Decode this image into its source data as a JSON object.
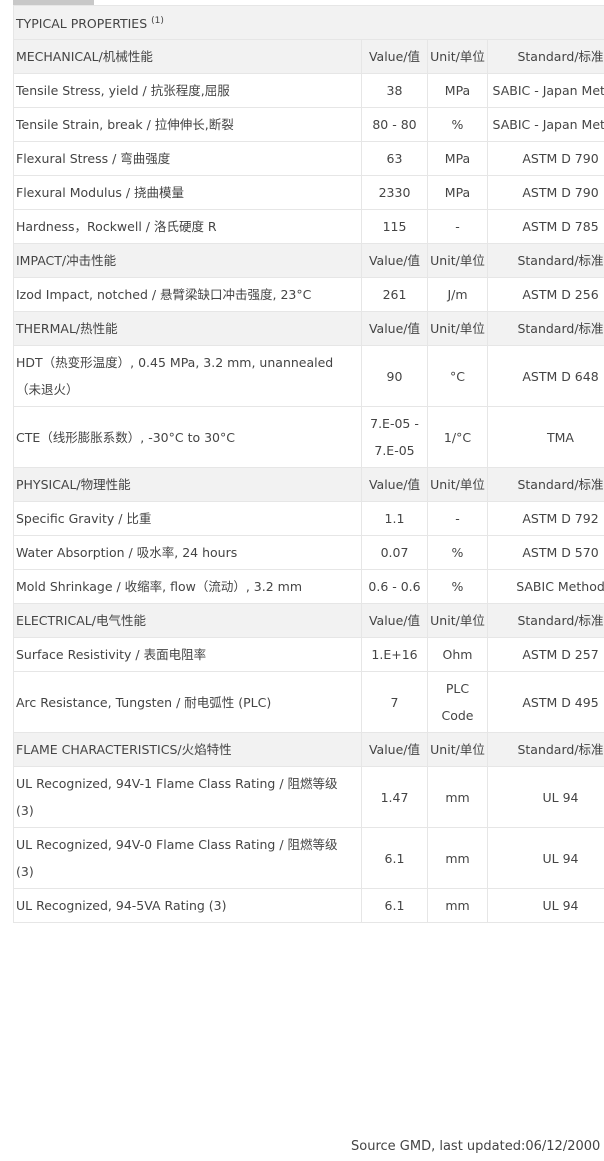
{
  "title": "TYPICAL PROPERTIES",
  "title_note": "(1)",
  "sections": [
    {
      "header": [
        "MECHANICAL/机械性能",
        "Value/值",
        "Unit/单位",
        "Standard/标准"
      ],
      "rows": [
        [
          "Tensile Stress, yield / 抗张程度,屈服",
          "38",
          "MPa",
          "SABIC - Japan Method"
        ],
        [
          "Tensile Strain, break / 拉伸伸长,断裂",
          "80 - 80",
          "%",
          "SABIC - Japan Method"
        ],
        [
          "Flexural Stress / 弯曲强度",
          "63",
          "MPa",
          "ASTM D 790"
        ],
        [
          "Flexural Modulus / 挠曲模量",
          "2330",
          "MPa",
          "ASTM D 790"
        ],
        [
          "Hardness，Rockwell / 洛氏硬度 R",
          "115",
          "-",
          "ASTM D 785"
        ]
      ]
    },
    {
      "header": [
        "IMPACT/冲击性能",
        "Value/值",
        "Unit/单位",
        "Standard/标准"
      ],
      "rows": [
        [
          "Izod Impact, notched / 悬臂梁缺口冲击强度, 23°C",
          "261",
          "J/m",
          "ASTM D 256"
        ]
      ]
    },
    {
      "header": [
        "THERMAL/热性能",
        "Value/值",
        "Unit/单位",
        "Standard/标准"
      ],
      "rows": [
        [
          "HDT（热变形温度）, 0.45 MPa, 3.2 mm, unannealed （未退火）",
          "90",
          "°C",
          "ASTM D 648"
        ],
        [
          "CTE（线形膨胀系数）, -30°C to 30°C",
          "7.E-05 - 7.E-05",
          "1/°C",
          "TMA"
        ]
      ]
    },
    {
      "header": [
        "PHYSICAL/物理性能",
        "Value/值",
        "Unit/单位",
        "Standard/标准"
      ],
      "rows": [
        [
          "Specific Gravity / 比重",
          "1.1",
          "-",
          "ASTM D 792"
        ],
        [
          "Water Absorption / 吸水率, 24 hours",
          "0.07",
          "%",
          "ASTM D 570"
        ],
        [
          "Mold Shrinkage / 收缩率, flow（流动）, 3.2 mm",
          "0.6 - 0.6",
          "%",
          "SABIC Method"
        ]
      ]
    },
    {
      "header": [
        "ELECTRICAL/电气性能",
        "Value/值",
        "Unit/单位",
        "Standard/标准"
      ],
      "rows": [
        [
          "Surface Resistivity / 表面电阻率",
          "1.E+16",
          "Ohm",
          "ASTM D 257"
        ],
        [
          "Arc Resistance, Tungsten / 耐电弧性 (PLC)",
          "7",
          "PLC Code",
          "ASTM D 495"
        ]
      ]
    },
    {
      "header": [
        "FLAME CHARACTERISTICS/火焰特性",
        "Value/值",
        "Unit/单位",
        "Standard/标准"
      ],
      "rows": [
        [
          "UL Recognized, 94V-1 Flame Class Rating / 阻燃等级 (3)",
          "1.47",
          "mm",
          "UL 94"
        ],
        [
          "UL Recognized, 94V-0 Flame Class Rating / 阻燃等级 (3)",
          "6.1",
          "mm",
          "UL 94"
        ],
        [
          "UL Recognized, 94-5VA Rating (3)",
          "6.1",
          "mm",
          "UL 94"
        ]
      ]
    }
  ],
  "footer": "Source GMD, last updated:06/12/2000"
}
